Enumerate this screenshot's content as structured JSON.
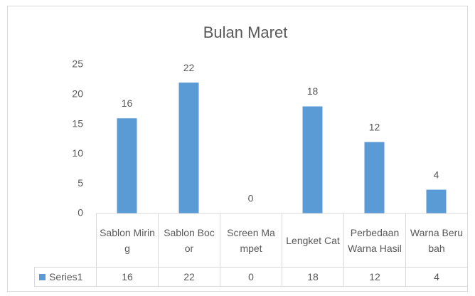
{
  "chart_data": {
    "type": "bar",
    "title": "Bulan Maret",
    "categories": [
      "Sablon Miring",
      "Sablon Bocor",
      "Screen Mampet",
      "Lengket Cat",
      "Perbedaan Warna Hasil",
      "Warna Berubah"
    ],
    "series": [
      {
        "name": "Series1",
        "color": "#5b9bd5",
        "values": [
          16,
          22,
          0,
          18,
          12,
          4
        ]
      }
    ],
    "ylim": [
      0,
      25
    ],
    "yticks": [
      0,
      5,
      10,
      15,
      20,
      25
    ],
    "grid": false,
    "data_table": true
  }
}
